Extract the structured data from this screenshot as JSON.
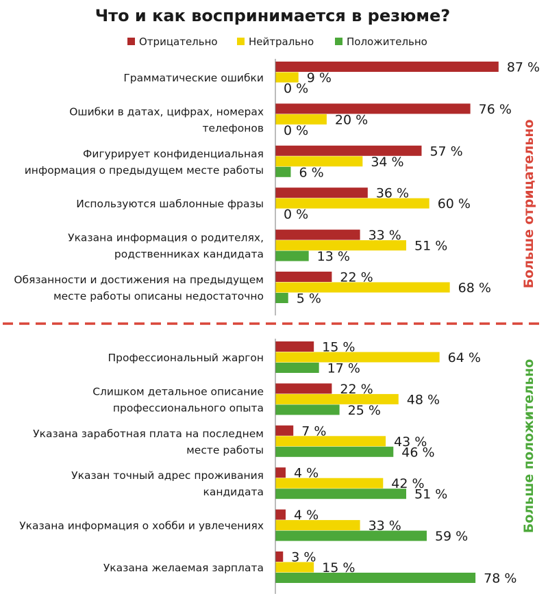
{
  "chart_data": {
    "type": "bar",
    "orientation": "horizontal",
    "title": "Что и как воспринимается в резюме?",
    "legend_position": "top",
    "series": [
      {
        "name": "Отрицательно",
        "color": "#b02a2a"
      },
      {
        "name": "Нейтрально",
        "color": "#f2d600"
      },
      {
        "name": "Положительно",
        "color": "#4ca83a"
      }
    ],
    "groups": [
      {
        "label": "Больше отрицательно",
        "color": "#d9463a",
        "categories": [
          {
            "label": [
              "Грамматические ошибки"
            ],
            "values": [
              87,
              9,
              0
            ]
          },
          {
            "label": [
              "Ошибки в датах, цифрах, номерах",
              "телефонов"
            ],
            "values": [
              76,
              20,
              0
            ]
          },
          {
            "label": [
              "Фигурирует конфиденциальная",
              "информация о предыдущем месте работы"
            ],
            "values": [
              57,
              34,
              6
            ]
          },
          {
            "label": [
              "Используются шаблонные фразы"
            ],
            "values": [
              36,
              60,
              0
            ]
          },
          {
            "label": [
              "Указана информация о родителях,",
              "родственниках кандидата"
            ],
            "values": [
              33,
              51,
              13
            ]
          },
          {
            "label": [
              "Обязанности и достижения на предыдущем",
              "месте работы описаны недостаточно"
            ],
            "values": [
              22,
              68,
              5
            ]
          }
        ]
      },
      {
        "label": "Больше положительно",
        "color": "#4ca83a",
        "categories": [
          {
            "label": [
              "Профессиональный жаргон"
            ],
            "values": [
              15,
              64,
              17
            ]
          },
          {
            "label": [
              "Слишком детальное описание",
              "профессионального опыта"
            ],
            "values": [
              22,
              48,
              25
            ]
          },
          {
            "label": [
              "Указана заработная плата на последнем",
              "месте работы"
            ],
            "values": [
              7,
              43,
              46
            ]
          },
          {
            "label": [
              "Указан точный адрес проживания",
              "кандидата"
            ],
            "values": [
              4,
              42,
              51
            ]
          },
          {
            "label": [
              "Указана информация о хобби и увлечениях"
            ],
            "values": [
              4,
              33,
              59
            ]
          },
          {
            "label": [
              "Указана желаемая зарплата"
            ],
            "values": [
              3,
              15,
              78
            ]
          }
        ]
      }
    ],
    "value_suffix": " %",
    "separator_color": "#d9463a"
  }
}
